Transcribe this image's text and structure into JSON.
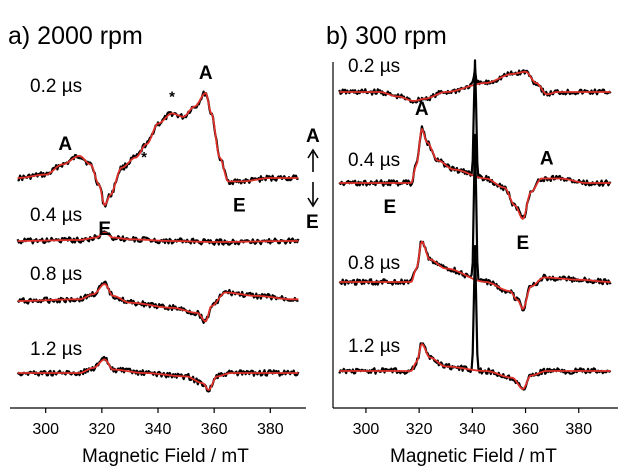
{
  "chart_data": [
    {
      "type": "line",
      "panel_title": "a) 2000 rpm",
      "xlabel": "Magnetic Field / mT",
      "xlim": [
        288,
        392
      ],
      "x_ticks": [
        "300",
        "320",
        "340",
        "360",
        "380"
      ],
      "colors": {
        "experimental": "#000000",
        "simulation": "#e0302a"
      },
      "series": [
        {
          "delay": "0.2 µs",
          "points": [
            [
              290,
              0
            ],
            [
              300,
              1
            ],
            [
              306,
              4
            ],
            [
              312,
              6.5
            ],
            [
              316,
              4
            ],
            [
              319,
              -2
            ],
            [
              321,
              -8
            ],
            [
              323,
              -5
            ],
            [
              327,
              3
            ],
            [
              332,
              6
            ],
            [
              336,
              10
            ],
            [
              340,
              16
            ],
            [
              345,
              19
            ],
            [
              349,
              18
            ],
            [
              353,
              21
            ],
            [
              357,
              25
            ],
            [
              359,
              19
            ],
            [
              362,
              6
            ],
            [
              365,
              -1
            ],
            [
              370,
              -1
            ],
            [
              380,
              0
            ],
            [
              388,
              0
            ]
          ]
        },
        {
          "delay": "0.4 µs",
          "points": [
            [
              290,
              0
            ],
            [
              312,
              0.3
            ],
            [
              318,
              1
            ],
            [
              321,
              2.5
            ],
            [
              324,
              1
            ],
            [
              330,
              0.5
            ],
            [
              345,
              0
            ],
            [
              360,
              -0.3
            ],
            [
              388,
              0
            ]
          ]
        },
        {
          "delay": "0.8 µs",
          "points": [
            [
              290,
              0
            ],
            [
              312,
              0.5
            ],
            [
              317,
              2
            ],
            [
              321,
              5
            ],
            [
              324,
              1.5
            ],
            [
              330,
              -0.5
            ],
            [
              345,
              -2
            ],
            [
              354,
              -3.5
            ],
            [
              357,
              -6
            ],
            [
              359,
              -1.5
            ],
            [
              364,
              2.5
            ],
            [
              375,
              1.5
            ],
            [
              388,
              0.5
            ]
          ]
        },
        {
          "delay": "1.2 µs",
          "points": [
            [
              290,
              0
            ],
            [
              312,
              0
            ],
            [
              317,
              1.5
            ],
            [
              321,
              4
            ],
            [
              324,
              1
            ],
            [
              335,
              0
            ],
            [
              350,
              -1
            ],
            [
              356,
              -3
            ],
            [
              358,
              -5
            ],
            [
              361,
              -1
            ],
            [
              366,
              0
            ],
            [
              388,
              0
            ]
          ]
        }
      ],
      "annotations": [
        {
          "text": "A",
          "x": 307,
          "trace": "0.2 µs"
        },
        {
          "text": "E",
          "x": 321,
          "trace": "0.2 µs"
        },
        {
          "text": "A",
          "x": 357,
          "trace": "0.2 µs"
        },
        {
          "text": "E",
          "x": 369,
          "trace": "0.2 µs"
        },
        {
          "text": "*",
          "x": 335,
          "trace": "0.2 µs"
        },
        {
          "text": "*",
          "x": 345,
          "trace": "0.2 µs"
        }
      ]
    },
    {
      "type": "line",
      "panel_title": "b) 300 rpm",
      "xlabel": "Magnetic Field / mT",
      "xlim": [
        288,
        394
      ],
      "x_ticks": [
        "300",
        "320",
        "340",
        "360",
        "380"
      ],
      "colors": {
        "experimental": "#000000",
        "simulation": "#e0302a"
      },
      "series": [
        {
          "delay": "0.2 µs",
          "points": [
            [
              290,
              0
            ],
            [
              305,
              0
            ],
            [
              312,
              -1
            ],
            [
              318,
              -2
            ],
            [
              322,
              -1.5
            ],
            [
              330,
              0
            ],
            [
              345,
              2
            ],
            [
              355,
              4
            ],
            [
              360,
              4.5
            ],
            [
              364,
              2
            ],
            [
              368,
              -0.5
            ],
            [
              372,
              0
            ],
            [
              392,
              0
            ]
          ]
        },
        {
          "delay": "0.4 µs",
          "points": [
            [
              290,
              0
            ],
            [
              317,
              0
            ],
            [
              319,
              4
            ],
            [
              321,
              12
            ],
            [
              323,
              9
            ],
            [
              327,
              5
            ],
            [
              333,
              3
            ],
            [
              345,
              1
            ],
            [
              352,
              -1
            ],
            [
              356,
              -5
            ],
            [
              359,
              -8
            ],
            [
              362,
              -2
            ],
            [
              366,
              1
            ],
            [
              373,
              1
            ],
            [
              383,
              0
            ],
            [
              392,
              0
            ]
          ]
        },
        {
          "delay": "0.8 µs",
          "points": [
            [
              290,
              0
            ],
            [
              317,
              0
            ],
            [
              319,
              3
            ],
            [
              321,
              9
            ],
            [
              324,
              5
            ],
            [
              330,
              3
            ],
            [
              345,
              0
            ],
            [
              354,
              -2
            ],
            [
              357,
              -4
            ],
            [
              359,
              -6
            ],
            [
              362,
              -1
            ],
            [
              367,
              1
            ],
            [
              380,
              0.5
            ],
            [
              392,
              0
            ]
          ]
        },
        {
          "delay": "1.2 µs",
          "points": [
            [
              290,
              0
            ],
            [
              317,
              0
            ],
            [
              319,
              2
            ],
            [
              321,
              6
            ],
            [
              324,
              3
            ],
            [
              330,
              1
            ],
            [
              345,
              0
            ],
            [
              355,
              -1.5
            ],
            [
              359,
              -4
            ],
            [
              362,
              -1
            ],
            [
              368,
              0
            ],
            [
              392,
              0
            ]
          ]
        }
      ],
      "sharp_peak": {
        "x": 341,
        "heights": [
          3,
          26,
          32,
          27
        ]
      },
      "annotations": [
        {
          "text": "A",
          "x": 321,
          "trace": "0.4 µs"
        },
        {
          "text": "E",
          "x": 309,
          "trace": "0.4 µs"
        },
        {
          "text": "E",
          "x": 359,
          "trace": "0.4 µs"
        },
        {
          "text": "A",
          "x": 368,
          "trace": "0.4 µs"
        }
      ]
    }
  ],
  "legend_arrow": {
    "top": "A",
    "bottom": "E"
  }
}
